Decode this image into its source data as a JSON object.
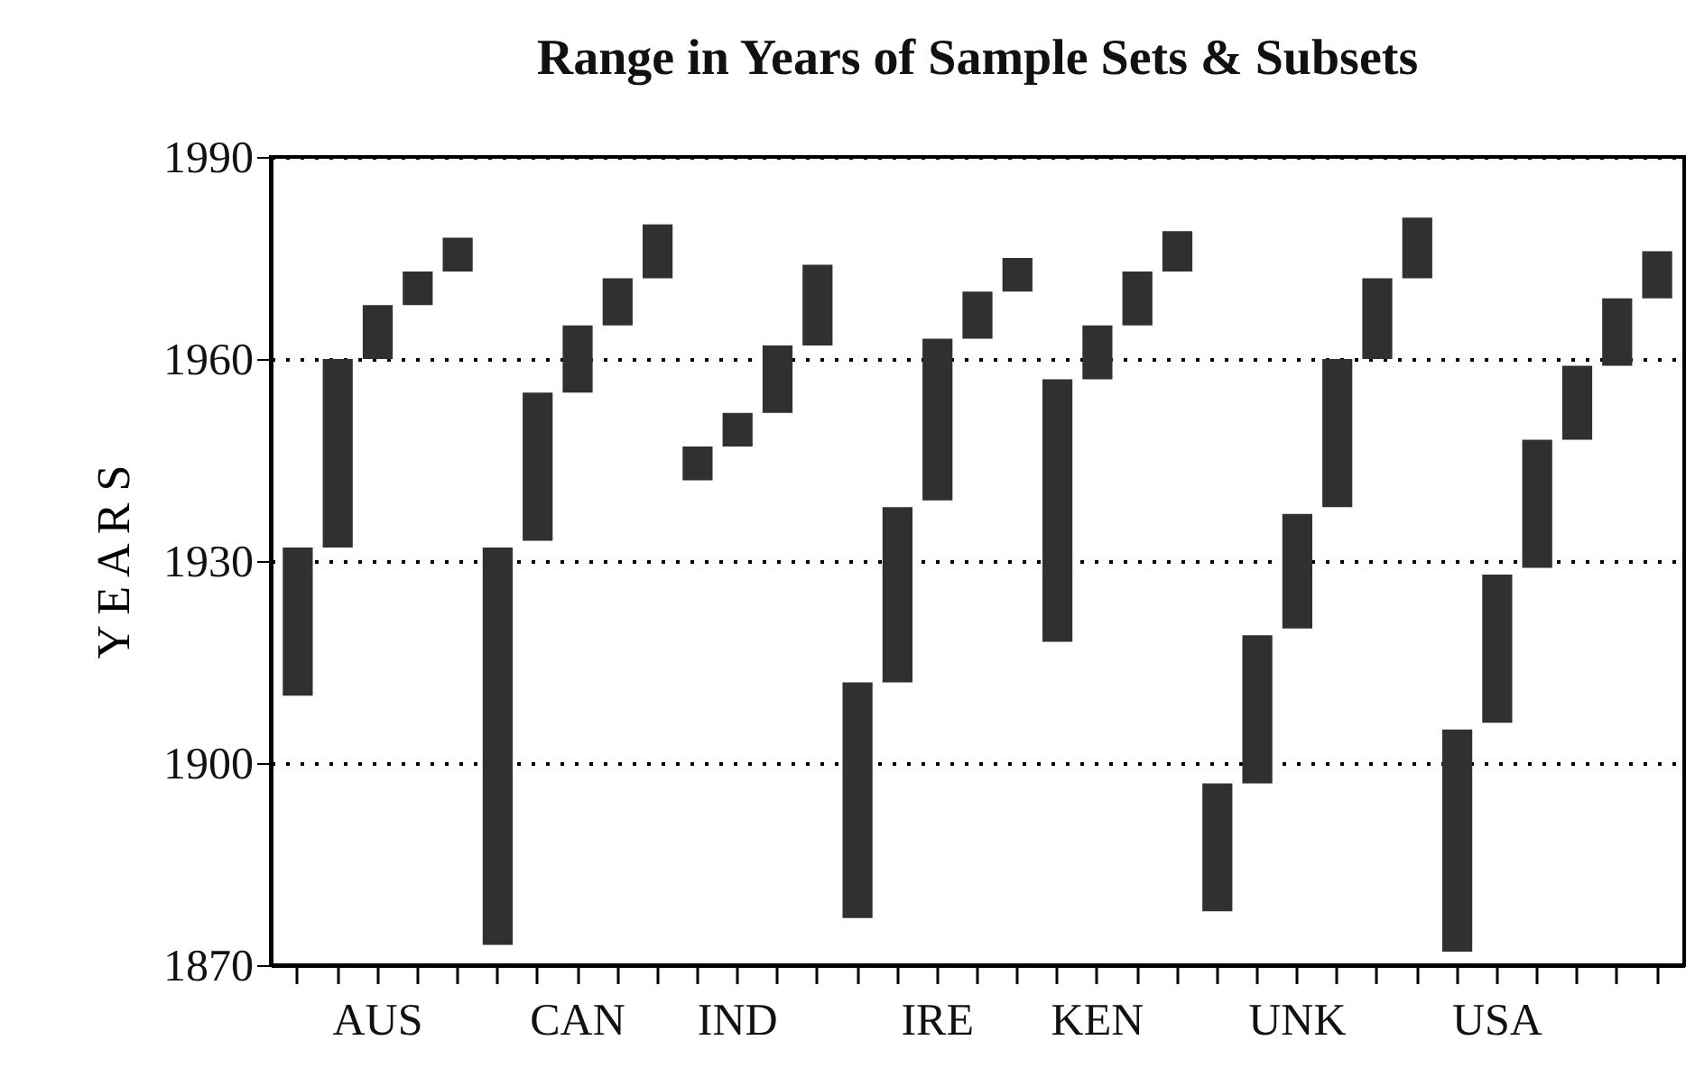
{
  "chart_data": {
    "type": "bar",
    "title": "Range in Years of Sample Sets & Subsets",
    "ylabel": "Y E A R S",
    "categories": [
      null,
      null,
      "AUS",
      null,
      null,
      null,
      null,
      "CAN",
      null,
      null,
      null,
      "IND",
      null,
      null,
      null,
      null,
      "IRE",
      null,
      null,
      null,
      "KEN",
      null,
      null,
      null,
      null,
      "UNK",
      null,
      null,
      null,
      null,
      "USA",
      null,
      null,
      null,
      null
    ],
    "base": [
      1910,
      1932,
      1960,
      1968,
      1973,
      1873,
      1933,
      1955,
      1965,
      1972,
      1942,
      1947,
      1952,
      1962,
      1877,
      1912,
      1939,
      1963,
      1970,
      1918,
      1957,
      1965,
      1973,
      1878,
      1897,
      1920,
      1938,
      1960,
      1972,
      1872,
      1906,
      1929,
      1948,
      1959,
      1969
    ],
    "values": [
      22,
      28,
      8,
      5,
      5,
      59,
      22,
      10,
      7,
      8,
      5,
      5,
      10,
      12,
      35,
      26,
      24,
      7,
      5,
      39,
      8,
      8,
      6,
      19,
      22,
      17,
      22,
      12,
      9,
      33,
      22,
      19,
      11,
      10,
      7
    ],
    "color": "#303030",
    "ylim": [
      1870,
      1990
    ],
    "yticks": [
      1870,
      1900,
      1930,
      1960,
      1990
    ],
    "grid": "y",
    "line_style": "dotted"
  }
}
